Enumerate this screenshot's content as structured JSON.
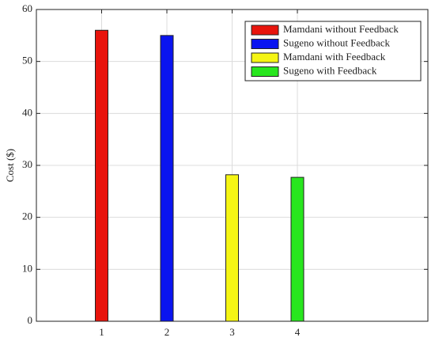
{
  "chart_data": {
    "type": "bar",
    "ylabel": "Cost ($)",
    "x": [
      1,
      2,
      3,
      4
    ],
    "series": [
      {
        "name": "Mamdani without Feedback",
        "color": "#e8140c",
        "values": [
          56,
          null,
          null,
          null
        ]
      },
      {
        "name": "Sugeno without Feedback",
        "color": "#0a14f0",
        "values": [
          null,
          55,
          null,
          null
        ]
      },
      {
        "name": "Mamdani with Feedback",
        "color": "#f5f514",
        "values": [
          null,
          null,
          28.2,
          null
        ]
      },
      {
        "name": "Sugeno with Feedback",
        "color": "#28e61e",
        "values": [
          null,
          null,
          null,
          27.7
        ]
      }
    ],
    "xlim": [
      0,
      6
    ],
    "xticks": [
      1,
      2,
      3,
      4
    ],
    "ylim": [
      0,
      60
    ],
    "yticks": [
      0,
      10,
      20,
      30,
      40,
      50,
      60
    ],
    "grid": true,
    "legend": "upper right"
  }
}
